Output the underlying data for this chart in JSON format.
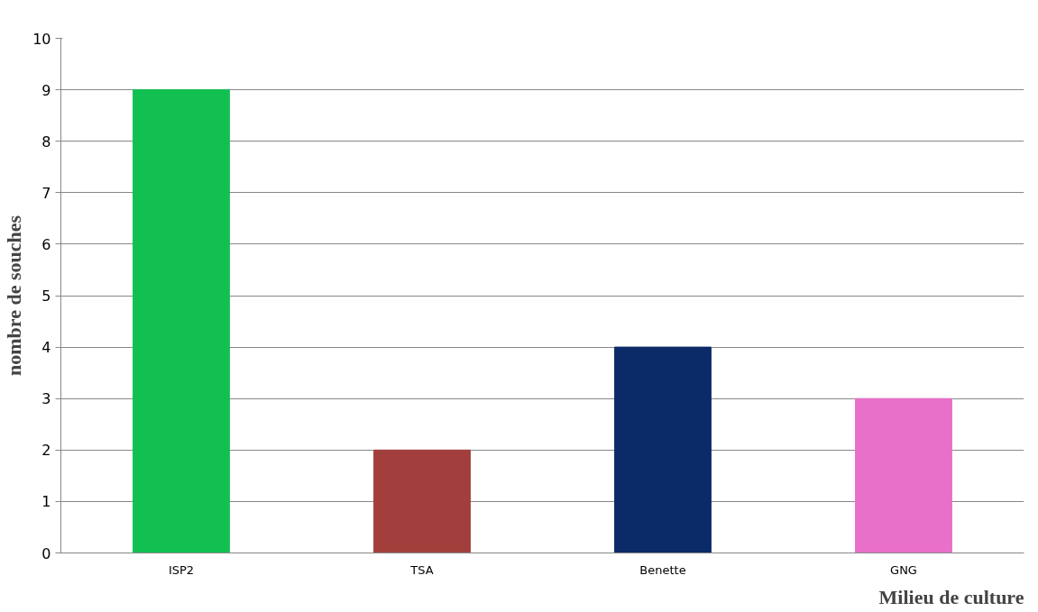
{
  "chart_data": {
    "type": "bar",
    "xlabel": "Milieu de culture",
    "ylabel": "nombre de souches",
    "categories": [
      "ISP2",
      "TSA",
      "Benette",
      "GNG"
    ],
    "values": [
      9,
      2,
      4,
      3
    ],
    "colors": [
      "#12c052",
      "#a23f3c",
      "#0b2a68",
      "#e870c8"
    ],
    "ylim": [
      0,
      10
    ],
    "yticks": [
      0,
      1,
      2,
      3,
      4,
      5,
      6,
      7,
      8,
      9,
      10
    ],
    "grid": "y"
  }
}
